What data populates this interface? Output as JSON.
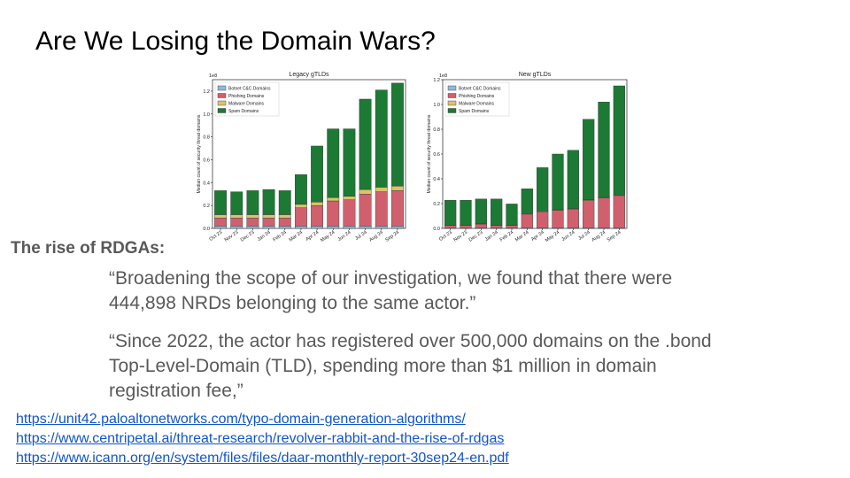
{
  "slide": {
    "title": "Are We Losing the Domain Wars?",
    "subheading": "The rise of RDGAs:",
    "quote1": "“Broadening the scope of our investigation, we found that there were 444,898 NRDs belonging to the same actor.”",
    "quote2": "“Since 2022, the actor has registered over 500,000 domains on the .bond Top-Level-Domain (TLD), spending more than $1 million in domain registration fee,”",
    "links": [
      "https://unit42.paloaltonetworks.com/typo-domain-generation-algorithms/",
      "https://www.centripetal.ai/threat-research/revolver-rabbit-and-the-rise-of-rdgas",
      "https://www.icann.org/en/system/files/files/daar-monthly-report-30sep24-en.pdf"
    ]
  },
  "chart_data": [
    {
      "type": "bar",
      "stacked": true,
      "title": "Legacy gTLDs",
      "ylabel": "Median count of security threat domains",
      "yscale_label": "1e8",
      "ylim": [
        0,
        1.3
      ],
      "yticks": [
        "0.0",
        "0.2",
        "0.4",
        "0.6",
        "0.8",
        "1.0",
        "1.2"
      ],
      "legend_position": "top-left",
      "categories": [
        "Oct 23",
        "Nov 23",
        "Dec 23",
        "Jan 24",
        "Feb 24",
        "Mar 24",
        "Apr 24",
        "May 24",
        "Jun 24",
        "Jul 24",
        "Aug 24",
        "Sep 24"
      ],
      "series": [
        {
          "name": "Botnet C&C Domains",
          "color": "#8fb8de",
          "values": [
            0.02,
            0.02,
            0.02,
            0.02,
            0.02,
            0.02,
            0.02,
            0.02,
            0.02,
            0.02,
            0.02,
            0.02
          ]
        },
        {
          "name": "Phishing Domains",
          "color": "#d1606e",
          "values": [
            0.07,
            0.07,
            0.07,
            0.07,
            0.07,
            0.16,
            0.18,
            0.22,
            0.23,
            0.28,
            0.3,
            0.31
          ]
        },
        {
          "name": "Malware Domains",
          "color": "#d8c46a",
          "values": [
            0.03,
            0.03,
            0.03,
            0.03,
            0.03,
            0.03,
            0.03,
            0.03,
            0.03,
            0.04,
            0.04,
            0.04
          ]
        },
        {
          "name": "Spam Domains",
          "color": "#1c7a34",
          "values": [
            0.21,
            0.2,
            0.21,
            0.22,
            0.21,
            0.26,
            0.49,
            0.6,
            0.59,
            0.79,
            0.85,
            0.9
          ]
        }
      ]
    },
    {
      "type": "bar",
      "stacked": true,
      "title": "New gTLDs",
      "ylabel": "Median count of security threat domains",
      "yscale_label": "1e8",
      "ylim": [
        0,
        1.2
      ],
      "yticks": [
        "0.0",
        "0.2",
        "0.4",
        "0.6",
        "0.8",
        "1.0",
        "1.2"
      ],
      "legend_position": "top-left",
      "categories": [
        "Oct 23",
        "Nov 23",
        "Dec 23",
        "Jan 24",
        "Feb 24",
        "Mar 24",
        "Apr 24",
        "May 24",
        "Jun 24",
        "Jul 24",
        "Aug 24",
        "Sep 24"
      ],
      "series": [
        {
          "name": "Botnet C&C Domains",
          "color": "#8fb8de",
          "values": [
            0.005,
            0.005,
            0.005,
            0.005,
            0.005,
            0.005,
            0.005,
            0.005,
            0.005,
            0.005,
            0.005,
            0.005
          ]
        },
        {
          "name": "Phishing Domains",
          "color": "#d1606e",
          "values": [
            0.02,
            0.02,
            0.03,
            0.02,
            0.02,
            0.11,
            0.13,
            0.14,
            0.15,
            0.22,
            0.24,
            0.26
          ]
        },
        {
          "name": "Malware Domains",
          "color": "#d8c46a",
          "values": [
            0.002,
            0.002,
            0.002,
            0.002,
            0.002,
            0.005,
            0.005,
            0.005,
            0.005,
            0.005,
            0.005,
            0.005
          ]
        },
        {
          "name": "Spam Domains",
          "color": "#1c7a34",
          "values": [
            0.2,
            0.2,
            0.2,
            0.21,
            0.17,
            0.2,
            0.35,
            0.45,
            0.47,
            0.65,
            0.77,
            0.88
          ]
        }
      ]
    }
  ]
}
